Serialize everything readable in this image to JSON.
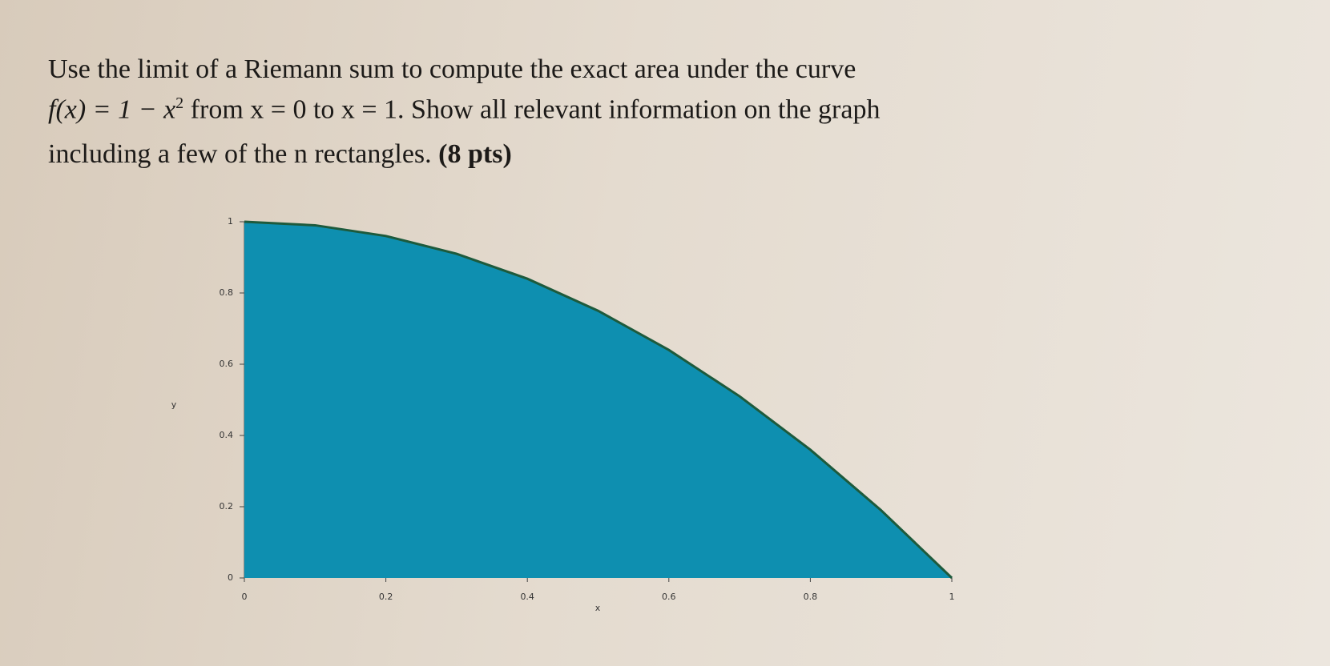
{
  "question": {
    "line1": "Use the limit of a Riemann sum to compute the exact area under the curve",
    "formula": "f(x) = 1 − x",
    "exponent": "2",
    "line2_rest": " from x = 0 to x = 1. Show all relevant information on the graph",
    "line3": "including a few of the n rectangles.",
    "points": "(8 pts)"
  },
  "chart_data": {
    "type": "area",
    "x": [
      0,
      0.1,
      0.2,
      0.3,
      0.4,
      0.5,
      0.6,
      0.7,
      0.8,
      0.9,
      1
    ],
    "values": [
      1,
      0.99,
      0.96,
      0.91,
      0.84,
      0.75,
      0.64,
      0.51,
      0.36,
      0.19,
      0
    ],
    "color": "#0e8fb0",
    "line_color": "#1d5a3c",
    "xlim": [
      0,
      1
    ],
    "ylim": [
      0,
      1
    ],
    "xticks": [
      0,
      0.2,
      0.4,
      0.6,
      0.8,
      1
    ],
    "yticks": [
      0,
      0.2,
      0.4,
      0.6,
      0.8,
      1
    ],
    "xlabel": "x",
    "ylabel": "y"
  }
}
